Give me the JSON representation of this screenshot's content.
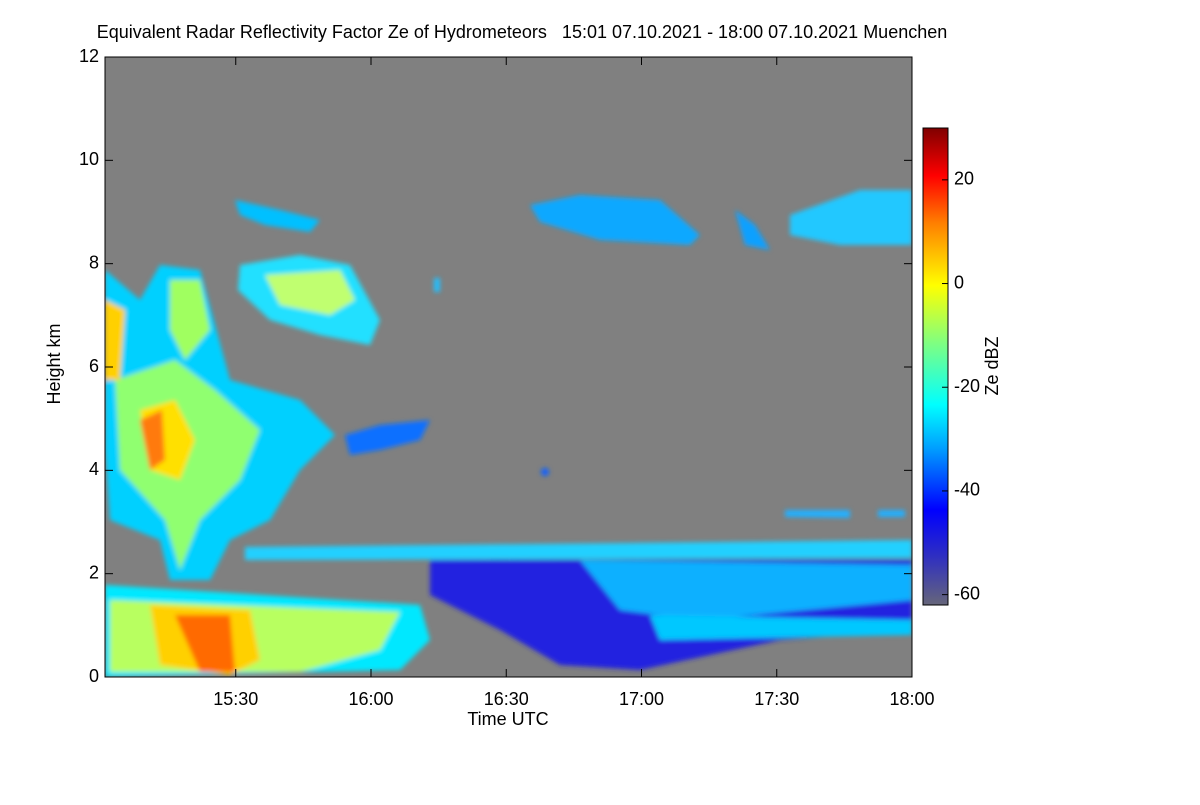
{
  "chart_data": {
    "type": "time-height",
    "title": "Equivalent Radar Reflectivity Factor Ze of Hydrometeors   15:01 07.10.2021 - 18:00 07.10.2021 Muenchen",
    "x_label": "Time UTC",
    "y_label": "Height km",
    "xlim": [
      901,
      1080
    ],
    "xticks": [
      {
        "value": 930,
        "label": "15:30"
      },
      {
        "value": 960,
        "label": "16:00"
      },
      {
        "value": 990,
        "label": "16:30"
      },
      {
        "value": 1020,
        "label": "17:00"
      },
      {
        "value": 1050,
        "label": "17:30"
      },
      {
        "value": 1080,
        "label": "18:00"
      }
    ],
    "ylim": [
      0,
      12
    ],
    "yticks": [
      0,
      2,
      4,
      6,
      8,
      10,
      12
    ],
    "colorbar": {
      "label": "Ze dBZ",
      "clim": [
        -62,
        30
      ],
      "ticks": [
        20,
        0,
        -20,
        -40,
        -60
      ]
    }
  }
}
